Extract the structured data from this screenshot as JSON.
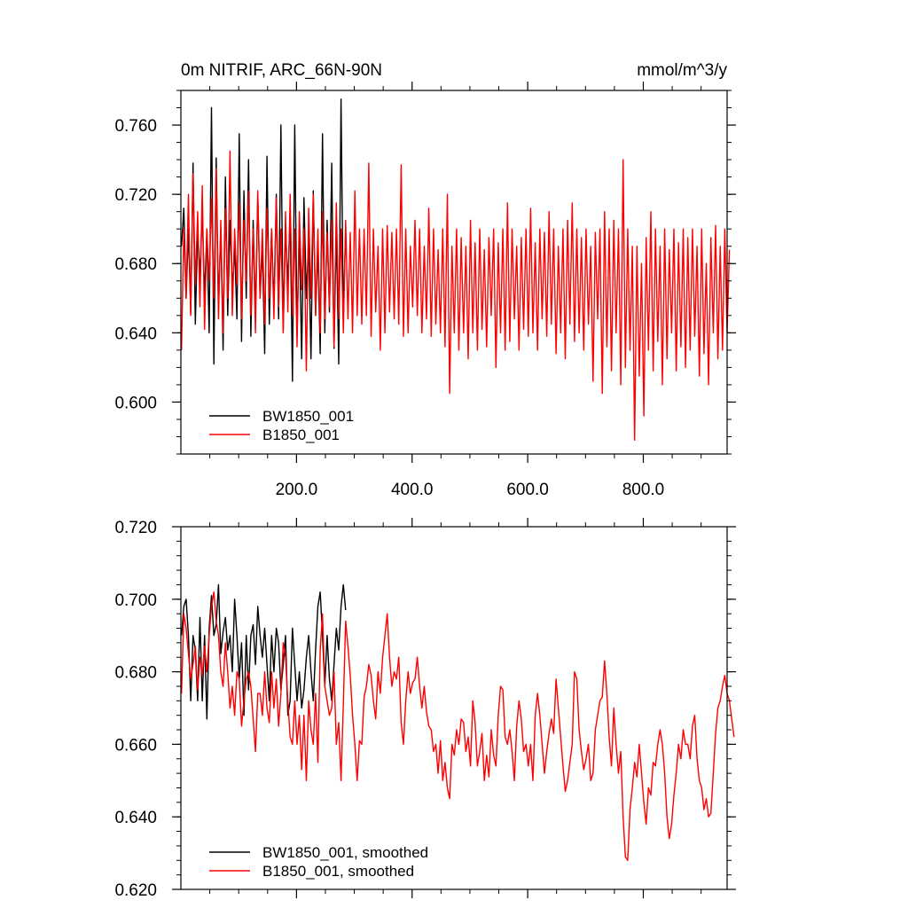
{
  "chart_data": [
    {
      "type": "line",
      "title_left": "0m NITRIF, ARC_66N-90N",
      "title_right": "mmol/m^3/y",
      "xlim": [
        0,
        945
      ],
      "ylim": [
        0.57,
        0.78
      ],
      "yticks": [
        0.6,
        0.64,
        0.68,
        0.72,
        0.76
      ],
      "ytick_labels": [
        "0.600",
        "0.640",
        "0.680",
        "0.720",
        "0.760"
      ],
      "xticks": [
        200,
        400,
        600,
        800
      ],
      "xtick_labels": [
        "200.0",
        "400.0",
        "600.0",
        "800.0"
      ],
      "legend_position": "bottom-left",
      "series": [
        {
          "name": "BW1850_001",
          "color": "#000000",
          "x_start": 1,
          "x_step": 4,
          "values": [
            0.69,
            0.712,
            0.66,
            0.7,
            0.651,
            0.738,
            0.645,
            0.7,
            0.672,
            0.712,
            0.66,
            0.7,
            0.64,
            0.77,
            0.622,
            0.741,
            0.655,
            0.7,
            0.63,
            0.73,
            0.65,
            0.705,
            0.665,
            0.69,
            0.648,
            0.755,
            0.635,
            0.722,
            0.66,
            0.74,
            0.638,
            0.705,
            0.65,
            0.72,
            0.66,
            0.69,
            0.628,
            0.742,
            0.645,
            0.7,
            0.655,
            0.72,
            0.648,
            0.76,
            0.642,
            0.7,
            0.668,
            0.71,
            0.612,
            0.76,
            0.638,
            0.7,
            0.625,
            0.718,
            0.66,
            0.695,
            0.625,
            0.722,
            0.65,
            0.69,
            0.628,
            0.755,
            0.64,
            0.705,
            0.652,
            0.738,
            0.631,
            0.7,
            0.622,
            0.775,
            0.648,
            0.7
          ]
        },
        {
          "name": "B1850_001",
          "color": "#ff0000",
          "x_start": 1,
          "x_step": 4,
          "values": [
            0.63,
            0.7,
            0.66,
            0.72,
            0.65,
            0.732,
            0.668,
            0.71,
            0.655,
            0.725,
            0.642,
            0.7,
            0.67,
            0.718,
            0.66,
            0.735,
            0.648,
            0.705,
            0.64,
            0.712,
            0.66,
            0.745,
            0.65,
            0.7,
            0.668,
            0.715,
            0.648,
            0.705,
            0.67,
            0.722,
            0.65,
            0.7,
            0.64,
            0.722,
            0.66,
            0.7,
            0.645,
            0.712,
            0.66,
            0.7,
            0.648,
            0.718,
            0.655,
            0.7,
            0.64,
            0.71,
            0.652,
            0.72,
            0.65,
            0.7,
            0.632,
            0.71,
            0.665,
            0.7,
            0.618,
            0.712,
            0.66,
            0.72,
            0.65,
            0.7,
            0.64,
            0.71,
            0.648,
            0.698,
            0.655,
            0.705,
            0.632,
            0.715,
            0.648,
            0.7,
            0.64,
            0.705,
            0.648,
            0.698,
            0.64,
            0.722,
            0.65,
            0.7,
            0.645,
            0.7,
            0.65,
            0.738,
            0.638,
            0.7,
            0.652,
            0.69,
            0.63,
            0.7,
            0.64,
            0.702,
            0.652,
            0.698,
            0.648,
            0.7,
            0.645,
            0.737,
            0.638,
            0.7,
            0.64,
            0.69,
            0.655,
            0.705,
            0.65,
            0.7,
            0.64,
            0.69,
            0.648,
            0.712,
            0.638,
            0.7,
            0.645,
            0.688,
            0.64,
            0.7,
            0.632,
            0.72,
            0.605,
            0.69,
            0.64,
            0.7,
            0.63,
            0.695,
            0.64,
            0.69,
            0.625,
            0.705,
            0.64,
            0.692,
            0.63,
            0.7,
            0.642,
            0.688,
            0.632,
            0.695,
            0.65,
            0.7,
            0.62,
            0.692,
            0.64,
            0.7,
            0.63,
            0.715,
            0.635,
            0.7,
            0.648,
            0.69,
            0.63,
            0.695,
            0.642,
            0.7,
            0.638,
            0.712,
            0.64,
            0.692,
            0.63,
            0.7,
            0.648,
            0.698,
            0.638,
            0.71,
            0.645,
            0.7,
            0.628,
            0.69,
            0.64,
            0.7,
            0.625,
            0.705,
            0.645,
            0.715,
            0.635,
            0.7,
            0.64,
            0.695,
            0.63,
            0.7,
            0.645,
            0.69,
            0.612,
            0.698,
            0.648,
            0.7,
            0.605,
            0.71,
            0.632,
            0.7,
            0.618,
            0.705,
            0.64,
            0.7,
            0.61,
            0.74,
            0.62,
            0.7,
            0.63,
            0.69,
            0.578,
            0.69,
            0.615,
            0.68,
            0.592,
            0.695,
            0.63,
            0.71,
            0.618,
            0.7,
            0.635,
            0.69,
            0.61,
            0.7,
            0.625,
            0.688,
            0.64,
            0.7,
            0.618,
            0.692,
            0.632,
            0.7,
            0.62,
            0.695,
            0.63,
            0.7,
            0.638,
            0.69,
            0.615,
            0.7,
            0.628,
            0.68,
            0.61,
            0.695,
            0.64,
            0.702,
            0.625,
            0.69,
            0.63,
            0.7,
            0.64,
            0.688
          ]
        }
      ]
    },
    {
      "type": "line",
      "xlim": [
        0,
        945
      ],
      "ylim": [
        0.62,
        0.72
      ],
      "yticks": [
        0.62,
        0.64,
        0.66,
        0.68,
        0.7,
        0.72
      ],
      "ytick_labels": [
        "0.620",
        "0.640",
        "0.660",
        "0.680",
        "0.700",
        "0.720"
      ],
      "legend_position": "bottom-left",
      "series": [
        {
          "name": "BW1850_001, smoothed",
          "color": "#000000",
          "x_start": 1,
          "x_step": 4,
          "values": [
            0.69,
            0.698,
            0.7,
            0.69,
            0.672,
            0.69,
            0.686,
            0.672,
            0.695,
            0.672,
            0.69,
            0.667,
            0.692,
            0.701,
            0.69,
            0.693,
            0.704,
            0.685,
            0.691,
            0.695,
            0.686,
            0.69,
            0.68,
            0.7,
            0.69,
            0.678,
            0.688,
            0.668,
            0.69,
            0.675,
            0.69,
            0.693,
            0.682,
            0.698,
            0.69,
            0.684,
            0.692,
            0.682,
            0.672,
            0.69,
            0.68,
            0.692,
            0.688,
            0.675,
            0.682,
            0.69,
            0.668,
            0.672,
            0.692,
            0.682,
            0.672,
            0.68,
            0.67,
            0.675,
            0.684,
            0.69,
            0.68,
            0.672,
            0.686,
            0.698,
            0.702,
            0.69,
            0.676,
            0.69,
            0.678,
            0.672,
            0.682,
            0.692,
            0.686,
            0.698,
            0.704,
            0.697
          ]
        },
        {
          "name": "B1850_001, smoothed",
          "color": "#ff0000",
          "x_start": 1,
          "x_step": 4,
          "values": [
            0.674,
            0.696,
            0.692,
            0.685,
            0.678,
            0.682,
            0.687,
            0.675,
            0.684,
            0.679,
            0.687,
            0.68,
            0.69,
            0.698,
            0.702,
            0.694,
            0.69,
            0.68,
            0.676,
            0.688,
            0.68,
            0.67,
            0.676,
            0.668,
            0.68,
            0.678,
            0.665,
            0.672,
            0.678,
            0.68,
            0.676,
            0.667,
            0.658,
            0.674,
            0.674,
            0.668,
            0.68,
            0.67,
            0.666,
            0.68,
            0.67,
            0.678,
            0.665,
            0.674,
            0.688,
            0.684,
            0.672,
            0.662,
            0.66,
            0.672,
            0.66,
            0.668,
            0.653,
            0.668,
            0.65,
            0.672,
            0.664,
            0.66,
            0.674,
            0.655,
            0.686,
            0.696,
            0.676,
            0.672,
            0.668,
            0.67,
            0.68,
            0.66,
            0.666,
            0.65,
            0.671,
            0.694,
            0.687,
            0.679,
            0.668,
            0.66,
            0.65,
            0.661,
            0.66,
            0.673,
            0.676,
            0.682,
            0.679,
            0.672,
            0.667,
            0.68,
            0.674,
            0.684,
            0.69,
            0.696,
            0.684,
            0.676,
            0.68,
            0.678,
            0.684,
            0.666,
            0.66,
            0.672,
            0.68,
            0.674,
            0.677,
            0.678,
            0.684,
            0.676,
            0.67,
            0.676,
            0.669,
            0.665,
            0.664,
            0.658,
            0.66,
            0.652,
            0.661,
            0.65,
            0.655,
            0.648,
            0.645,
            0.66,
            0.657,
            0.664,
            0.66,
            0.667,
            0.666,
            0.658,
            0.662,
            0.654,
            0.672,
            0.666,
            0.654,
            0.658,
            0.663,
            0.65,
            0.657,
            0.651,
            0.664,
            0.657,
            0.654,
            0.668,
            0.676,
            0.675,
            0.662,
            0.66,
            0.664,
            0.658,
            0.65,
            0.665,
            0.672,
            0.667,
            0.658,
            0.66,
            0.654,
            0.66,
            0.65,
            0.668,
            0.674,
            0.668,
            0.66,
            0.652,
            0.658,
            0.663,
            0.667,
            0.663,
            0.678,
            0.67,
            0.662,
            0.654,
            0.647,
            0.65,
            0.655,
            0.66,
            0.68,
            0.678,
            0.664,
            0.658,
            0.653,
            0.656,
            0.66,
            0.65,
            0.652,
            0.664,
            0.668,
            0.672,
            0.673,
            0.683,
            0.674,
            0.662,
            0.654,
            0.67,
            0.66,
            0.652,
            0.658,
            0.64,
            0.629,
            0.628,
            0.642,
            0.648,
            0.655,
            0.651,
            0.66,
            0.652,
            0.644,
            0.638,
            0.648,
            0.646,
            0.655,
            0.654,
            0.66,
            0.664,
            0.66,
            0.652,
            0.64,
            0.634,
            0.638,
            0.646,
            0.652,
            0.66,
            0.656,
            0.664,
            0.66,
            0.66,
            0.656,
            0.665,
            0.668,
            0.656,
            0.65,
            0.648,
            0.642,
            0.645,
            0.64,
            0.641,
            0.652,
            0.663,
            0.67,
            0.672,
            0.676,
            0.679,
            0.674,
            0.672,
            0.667,
            0.662
          ]
        }
      ]
    }
  ]
}
